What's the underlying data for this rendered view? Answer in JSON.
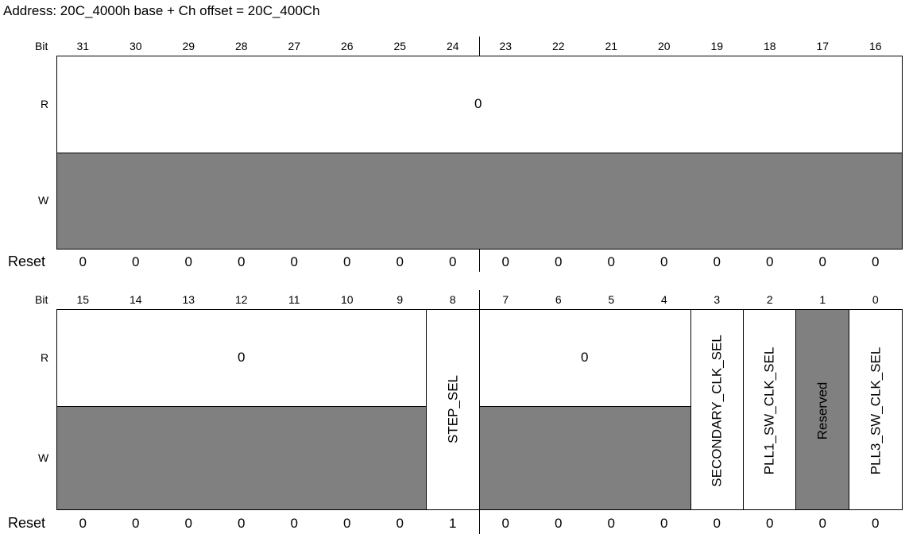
{
  "address": "Address: 20C_4000h base + Ch offset = 20C_400Ch",
  "labels": {
    "bit": "Bit",
    "r": "R",
    "w": "W",
    "reset": "Reset"
  },
  "upper": {
    "bits": [
      "31",
      "30",
      "29",
      "28",
      "27",
      "26",
      "25",
      "24",
      "23",
      "22",
      "21",
      "20",
      "19",
      "18",
      "17",
      "16"
    ],
    "r_value": "0",
    "reset": [
      "0",
      "0",
      "0",
      "0",
      "0",
      "0",
      "0",
      "0",
      "0",
      "0",
      "0",
      "0",
      "0",
      "0",
      "0",
      "0"
    ]
  },
  "lower": {
    "bits": [
      "15",
      "14",
      "13",
      "12",
      "11",
      "10",
      "9",
      "8",
      "7",
      "6",
      "5",
      "4",
      "3",
      "2",
      "1",
      "0"
    ],
    "r_value_left": "0",
    "r_value_right": "0",
    "reset": [
      "0",
      "0",
      "0",
      "0",
      "0",
      "0",
      "0",
      "1",
      "0",
      "0",
      "0",
      "0",
      "0",
      "0",
      "0",
      "0"
    ],
    "fields": {
      "step_sel": "STEP_SEL",
      "secondary_clk_sel": "SECONDARY_CLK_SEL",
      "pll1_sw_clk_sel": "PLL1_SW_CLK_SEL",
      "reserved": "Reserved",
      "pll3_sw_clk_sel": "PLL3_SW_CLK_SEL"
    }
  }
}
